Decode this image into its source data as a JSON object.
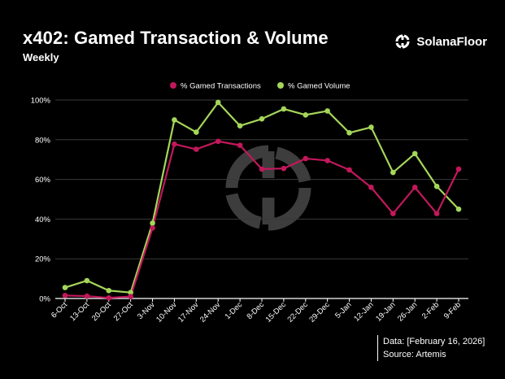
{
  "header": {
    "title": "x402: Gamed Transaction & Volume",
    "subtitle": "Weekly",
    "brand_name": "SolanaFloor",
    "brand_icon": "solanafloor-logo-icon"
  },
  "footer": {
    "data_date": "Data: [February 16, 2026]",
    "source": "Source: Artemis"
  },
  "colors": {
    "background": "#000000",
    "transactions": "#c2185b",
    "volume": "#a5d65a",
    "grid": "#3a3a3a",
    "watermark": "#3d3d3d"
  },
  "chart_data": {
    "type": "line",
    "title": "x402: Gamed Transaction & Volume",
    "subtitle": "Weekly",
    "xlabel": "",
    "ylabel": "",
    "ylim": [
      0,
      100
    ],
    "yticks": [
      0,
      20,
      40,
      60,
      80,
      100
    ],
    "ytick_labels": [
      "0%",
      "20%",
      "40%",
      "60%",
      "80%",
      "100%"
    ],
    "grid": true,
    "legend_position": "top-center",
    "categories": [
      "6-Oct",
      "13-Oct",
      "20-Oct",
      "27-Oct",
      "3-Nov",
      "10-Nov",
      "17-Nov",
      "24-Nov",
      "1-Dec",
      "8-Dec",
      "15-Dec",
      "22-Dec",
      "29-Dec",
      "5-Jan",
      "12-Jan",
      "19-Jan",
      "26-Jan",
      "2-Feb",
      "9-Feb"
    ],
    "series": [
      {
        "name": "% Gamed Transactions",
        "color": "#c2185b",
        "values": [
          1.5,
          1.2,
          0.3,
          1.0,
          35.5,
          77.8,
          75.2,
          79.2,
          77.2,
          65.2,
          65.5,
          70.5,
          69.5,
          64.8,
          56.0,
          42.8,
          56.0,
          42.8,
          65.2
        ]
      },
      {
        "name": "% Gamed Volume",
        "color": "#a5d65a",
        "values": [
          5.5,
          9.0,
          4.0,
          3.0,
          38.0,
          90.0,
          83.8,
          98.8,
          87.0,
          90.5,
          95.5,
          92.5,
          94.5,
          83.5,
          86.3,
          63.5,
          73.0,
          56.5,
          45.0
        ]
      }
    ]
  }
}
